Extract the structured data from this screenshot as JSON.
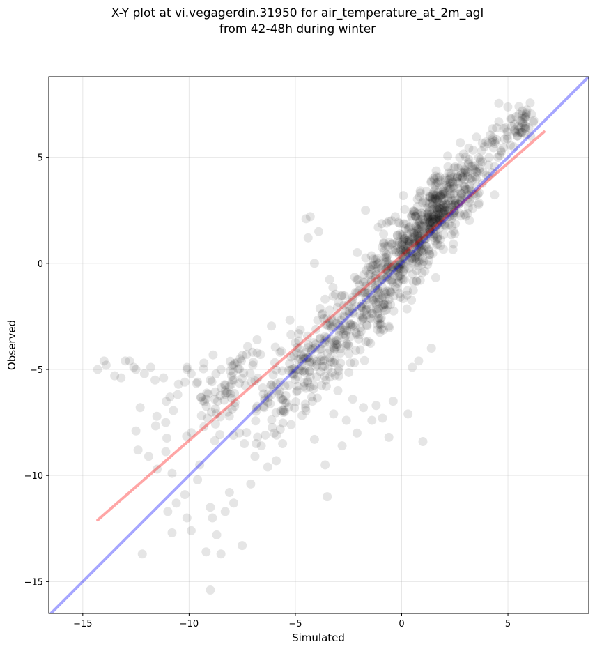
{
  "title_line1": "X-Y plot at vi.vegagerdin.31950 for air_temperature_at_2m_agl",
  "title_line2": "from 42-48h during winter",
  "chart_data": {
    "type": "scatter",
    "title": "X-Y plot at vi.vegagerdin.31950 for air_temperature_at_2m_agl from 42-48h during winter",
    "xlabel": "Simulated",
    "ylabel": "Observed",
    "xlim": [
      -16.6,
      8.8
    ],
    "ylim": [
      -16.5,
      8.8
    ],
    "x_ticks": [
      -15,
      -10,
      -5,
      0,
      5
    ],
    "y_ticks": [
      -15,
      -10,
      -5,
      0,
      5
    ],
    "x_tick_labels": [
      "−15",
      "−10",
      "−5",
      "0",
      "5"
    ],
    "y_tick_labels": [
      "−15",
      "−10",
      "−5",
      "0",
      "5"
    ],
    "grid": true,
    "legend": "none",
    "point_color": "#000000",
    "point_alpha": 0.1,
    "points": [
      [
        -14.3,
        -5.0
      ],
      [
        -13.9,
        -4.8
      ],
      [
        -14.0,
        -4.6
      ],
      [
        -13.5,
        -5.3
      ],
      [
        -13.2,
        -5.4
      ],
      [
        -13.0,
        -4.6
      ],
      [
        -12.8,
        -4.6
      ],
      [
        -12.6,
        -4.9
      ],
      [
        -12.5,
        -5.0
      ],
      [
        -12.1,
        -5.2
      ],
      [
        -11.8,
        -4.9
      ],
      [
        -11.6,
        -5.5
      ],
      [
        -11.2,
        -5.4
      ],
      [
        -10.9,
        -6.3
      ],
      [
        -10.5,
        -5.7
      ],
      [
        -10.2,
        -5.6
      ],
      [
        -10.1,
        -4.9
      ],
      [
        -9.9,
        -5.2
      ],
      [
        -9.6,
        -5.6
      ],
      [
        -9.3,
        -4.7
      ],
      [
        -9.0,
        -5.5
      ],
      [
        -8.8,
        -6.4
      ],
      [
        -8.5,
        -5.0
      ],
      [
        -8.3,
        -6.0
      ],
      [
        -8.0,
        -5.3
      ],
      [
        -7.9,
        -4.8
      ],
      [
        -7.6,
        -4.5
      ],
      [
        -7.3,
        -4.3
      ],
      [
        -7.0,
        -4.8
      ],
      [
        -6.8,
        -3.6
      ],
      [
        -12.3,
        -6.8
      ],
      [
        -12.5,
        -7.9
      ],
      [
        -12.4,
        -8.8
      ],
      [
        -11.9,
        -9.1
      ],
      [
        -11.5,
        -9.7
      ],
      [
        -11.1,
        -7.5
      ],
      [
        -10.8,
        -9.9
      ],
      [
        -10.6,
        -11.3
      ],
      [
        -10.2,
        -10.9
      ],
      [
        -10.1,
        -12.0
      ],
      [
        -9.9,
        -12.6
      ],
      [
        -9.6,
        -10.2
      ],
      [
        -9.5,
        -9.5
      ],
      [
        -9.3,
        -7.7
      ],
      [
        -9.0,
        -11.5
      ],
      [
        -8.9,
        -12.0
      ],
      [
        -8.7,
        -12.8
      ],
      [
        -8.5,
        -13.7
      ],
      [
        -8.3,
        -11.7
      ],
      [
        -8.1,
        -10.8
      ],
      [
        -7.9,
        -11.3
      ],
      [
        -7.5,
        -13.3
      ],
      [
        -7.4,
        -8.5
      ],
      [
        -7.1,
        -10.4
      ],
      [
        -6.9,
        -9.1
      ],
      [
        -9.2,
        -13.6
      ],
      [
        -9.0,
        -15.4
      ],
      [
        -10.8,
        -12.7
      ],
      [
        -11.0,
        -11.7
      ],
      [
        -12.2,
        -13.7
      ],
      [
        -6.6,
        -8.6
      ],
      [
        -6.3,
        -9.6
      ],
      [
        -6.0,
        -8.0
      ],
      [
        -5.9,
        -9.3
      ],
      [
        -5.6,
        -8.5
      ],
      [
        -5.5,
        -7.0
      ],
      [
        -5.2,
        -7.6
      ],
      [
        -4.9,
        -6.0
      ],
      [
        -4.6,
        -5.8
      ],
      [
        -4.2,
        -6.5
      ],
      [
        -4.1,
        -8.3
      ],
      [
        -3.6,
        -9.5
      ],
      [
        -3.5,
        -11.0
      ],
      [
        -3.2,
        -7.1
      ],
      [
        -3.0,
        -6.0
      ],
      [
        -2.8,
        -8.6
      ],
      [
        -2.6,
        -7.4
      ],
      [
        -2.3,
        -6.4
      ],
      [
        -2.1,
        -8.0
      ],
      [
        -1.8,
        -6.8
      ],
      [
        -1.4,
        -7.4
      ],
      [
        -1.2,
        -6.7
      ],
      [
        -0.9,
        -7.3
      ],
      [
        -0.6,
        -8.2
      ],
      [
        -0.4,
        -6.5
      ],
      [
        0.3,
        -7.1
      ],
      [
        1.0,
        -8.4
      ],
      [
        0.8,
        -4.6
      ],
      [
        0.5,
        -4.9
      ],
      [
        1.4,
        -4.0
      ],
      [
        -4.5,
        2.1
      ],
      [
        -4.3,
        2.2
      ],
      [
        -4.4,
        1.2
      ],
      [
        -3.9,
        1.5
      ],
      [
        -4.1,
        0.0
      ],
      [
        -1.7,
        2.5
      ],
      [
        -1.1,
        1.7
      ],
      [
        -0.7,
        1.9
      ],
      [
        -0.3,
        2.2
      ],
      [
        -0.2,
        1.3
      ]
    ],
    "series": [
      {
        "values": [
          [
            -14.3,
            -12.1
          ],
          [
            6.7,
            6.2
          ]
        ],
        "color": "#ff0000",
        "alpha": 0.35
      },
      {
        "values": [
          [
            -16.6,
            -16.6
          ],
          [
            8.8,
            8.8
          ]
        ],
        "color": "#0000ff",
        "alpha": 0.35
      }
    ]
  }
}
